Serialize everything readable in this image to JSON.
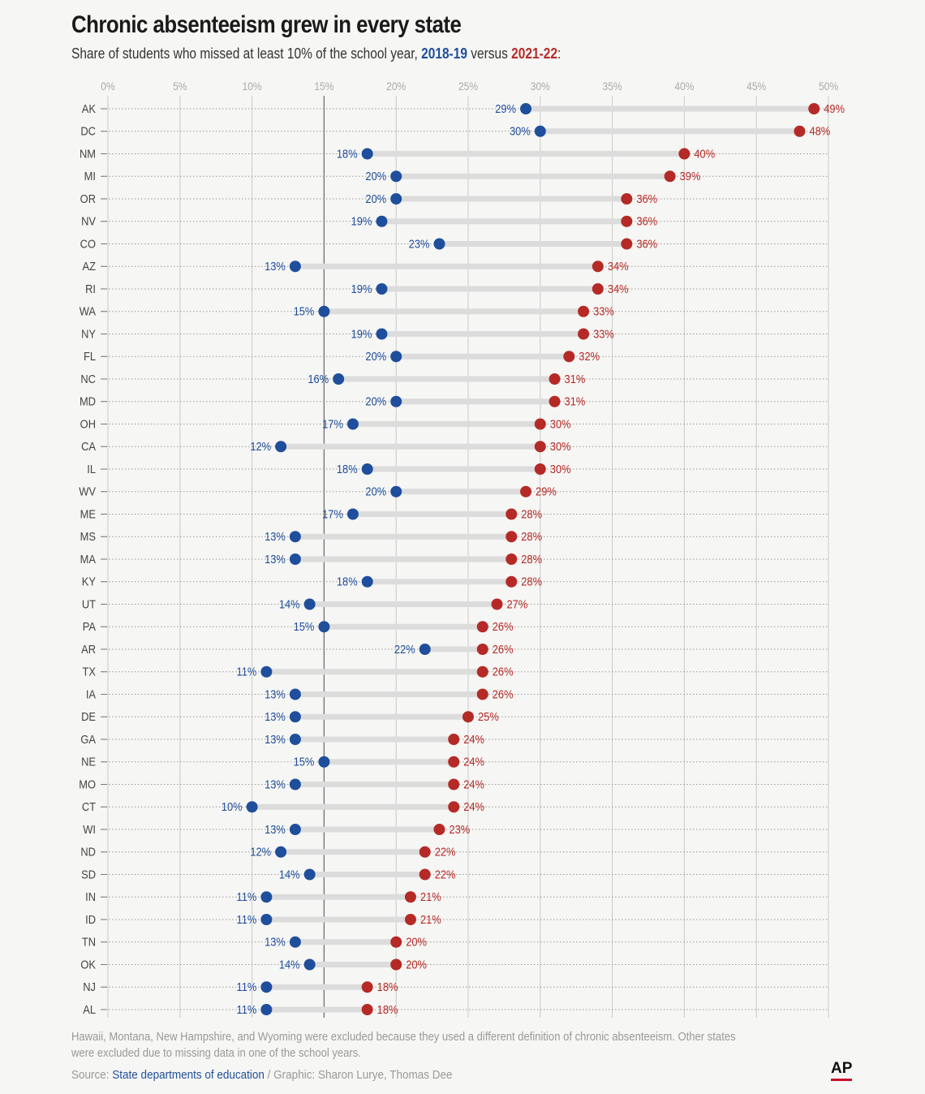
{
  "title": "Chronic absenteeism grew in every state",
  "subtitle": {
    "prefix": "Share of students who missed at least 10% of the school year, ",
    "year_a": "2018-19",
    "middle": " versus ",
    "year_b": "2021-22",
    "suffix": ":"
  },
  "colors": {
    "year_a": "#1f4e9c",
    "year_b": "#b52a26",
    "connector": "#dcdcdc"
  },
  "chart_data": {
    "type": "dumbbell",
    "x_ticks": [
      "0%",
      "5%",
      "10%",
      "15%",
      "20%",
      "25%",
      "30%",
      "35%",
      "40%",
      "45%",
      "50%"
    ],
    "xlim": [
      0,
      50
    ],
    "grid": true,
    "categories": [
      "AK",
      "DC",
      "NM",
      "MI",
      "OR",
      "NV",
      "CO",
      "AZ",
      "RI",
      "WA",
      "NY",
      "FL",
      "NC",
      "MD",
      "OH",
      "CA",
      "IL",
      "WV",
      "ME",
      "MS",
      "MA",
      "KY",
      "UT",
      "PA",
      "AR",
      "TX",
      "IA",
      "DE",
      "GA",
      "NE",
      "MO",
      "CT",
      "WI",
      "ND",
      "SD",
      "IN",
      "ID",
      "TN",
      "OK",
      "NJ",
      "AL"
    ],
    "series": [
      {
        "name": "2018-19",
        "values": [
          29,
          30,
          18,
          20,
          20,
          19,
          23,
          13,
          19,
          15,
          19,
          20,
          16,
          20,
          17,
          12,
          18,
          20,
          17,
          13,
          13,
          18,
          14,
          15,
          22,
          11,
          13,
          13,
          13,
          15,
          13,
          10,
          13,
          12,
          14,
          11,
          11,
          13,
          14,
          11,
          11
        ],
        "labels": [
          "29%",
          "30%",
          "18%",
          "20%",
          "20%",
          "19%",
          "23%",
          "13%",
          "19%",
          "15%",
          "19%",
          "20%",
          "16%",
          "20%",
          "17%",
          "12%",
          "18%",
          "20%",
          "17%",
          "13%",
          "13%",
          "18%",
          "14%",
          "15%",
          "22%",
          "11%",
          "13%",
          "13%",
          "13%",
          "15%",
          "13%",
          "10%",
          "13%",
          "12%",
          "14%",
          "11%",
          "11%",
          "13%",
          "14%",
          "11%",
          "11%"
        ]
      },
      {
        "name": "2021-22",
        "values": [
          49,
          48,
          40,
          39,
          36,
          36,
          36,
          34,
          34,
          33,
          33,
          32,
          31,
          31,
          30,
          30,
          30,
          29,
          28,
          28,
          28,
          28,
          27,
          26,
          26,
          26,
          26,
          25,
          24,
          24,
          24,
          24,
          23,
          22,
          22,
          21,
          21,
          20,
          20,
          18,
          18
        ],
        "labels": [
          "49%",
          "48%",
          "40%",
          "39%",
          "36%",
          "36%",
          "36%",
          "34%",
          "34%",
          "33%",
          "33%",
          "32%",
          "31%",
          "31%",
          "30%",
          "30%",
          "30%",
          "29%",
          "28%",
          "28%",
          "28%",
          "28%",
          "27%",
          "26%",
          "26%",
          "26%",
          "26%",
          "25%",
          "24%",
          "24%",
          "24%",
          "24%",
          "23%",
          "22%",
          "22%",
          "21%",
          "21%",
          "20%",
          "20%",
          "18%",
          "18%"
        ]
      }
    ]
  },
  "note": "Hawaii, Montana, New Hampshire, and Wyoming were excluded because they used a different definition of chronic absenteeism. Other states were excluded due to missing data in one of the school years.",
  "source": {
    "prefix": "Source: ",
    "link": "State departments of education",
    "suffix": " / Graphic: Sharon Lurye, Thomas Dee"
  },
  "logo": "AP"
}
